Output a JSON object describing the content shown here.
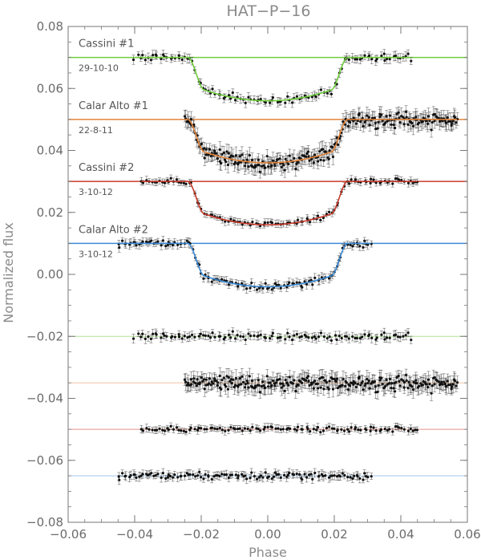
{
  "chart_data": {
    "type": "scatter",
    "title": "HAT−P−16",
    "xlabel": "Phase",
    "ylabel": "Normalized flux",
    "xlim": [
      -0.06,
      0.06
    ],
    "ylim": [
      -0.08,
      0.08
    ],
    "xticks": [
      -0.06,
      -0.04,
      -0.02,
      0.0,
      0.02,
      0.04,
      0.06
    ],
    "xtick_labels": [
      "−0.06",
      "−0.04",
      "−0.02",
      "0.00",
      "0.02",
      "0.04",
      "0.06"
    ],
    "yticks": [
      -0.08,
      -0.06,
      -0.04,
      -0.02,
      0.0,
      0.02,
      0.04,
      0.06,
      0.08
    ],
    "ytick_labels": [
      "−0.08",
      "−0.06",
      "−0.04",
      "−0.02",
      "0.00",
      "0.02",
      "0.04",
      "0.06",
      "0.08"
    ],
    "grid": false,
    "transit": {
      "depth": 0.014,
      "ingress_start": -0.024,
      "ingress_end": -0.019,
      "egress_start": 0.019,
      "egress_end": 0.024
    },
    "series": [
      {
        "name": "Cassini #1",
        "date": "29-10-10",
        "color": "#6fce3c",
        "offset": 0.07,
        "residual_offset": -0.02,
        "x_range": [
          -0.04,
          0.043
        ],
        "n_points": 110,
        "noise": 0.0009,
        "err": 0.0012
      },
      {
        "name": "Calar Alto #1",
        "date": "22-8-11",
        "color": "#e2843a",
        "offset": 0.05,
        "residual_offset": -0.035,
        "x_range": [
          -0.025,
          0.057
        ],
        "n_points": 260,
        "noise": 0.0016,
        "err": 0.0022
      },
      {
        "name": "Cassini #2",
        "date": "3-10-12",
        "color": "#c83a2a",
        "offset": 0.03,
        "residual_offset": -0.05,
        "x_range": [
          -0.038,
          0.045
        ],
        "n_points": 110,
        "noise": 0.0006,
        "err": 0.001
      },
      {
        "name": "Calar Alto #2",
        "date": "3-10-12",
        "color": "#3a8ad6",
        "offset": 0.01,
        "residual_offset": -0.065,
        "x_range": [
          -0.045,
          0.031
        ],
        "n_points": 120,
        "noise": 0.0008,
        "err": 0.0012
      }
    ]
  }
}
